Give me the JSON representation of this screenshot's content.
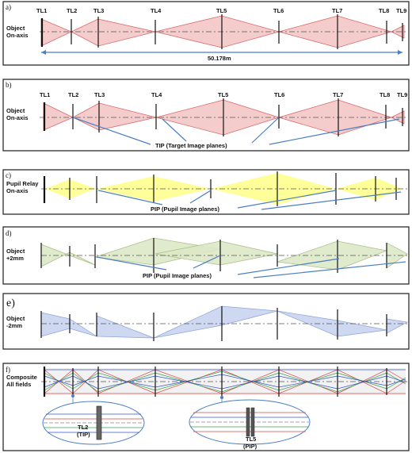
{
  "panels": {
    "a": {
      "letter": "a)",
      "side_label_line1": "Object",
      "side_label_line2": "On-axis",
      "lens_labels": [
        "TL1",
        "TL2",
        "TL3",
        "TL4",
        "TL5",
        "TL6",
        "TL7",
        "TL8",
        "TL9"
      ],
      "length_label": "50.178m"
    },
    "b": {
      "letter": "b)",
      "side_label_line1": "Object",
      "side_label_line2": "On-axis",
      "lens_labels": [
        "TL1",
        "TL2",
        "TL3",
        "TL4",
        "TL5",
        "TL6",
        "TL7",
        "TL8",
        "TL9"
      ],
      "note": "TIP (Target Image planes)"
    },
    "c": {
      "letter": "c)",
      "side_label_line1": "Pupil Relay",
      "side_label_line2": "On-axis",
      "note": "PIP (Pupil Image planes)"
    },
    "d": {
      "letter": "d)",
      "side_label_line1": "Object",
      "side_label_line2": "+2mm",
      "note": "PIP (Pupil Image planes)"
    },
    "e": {
      "letter": "e)",
      "side_label_line1": "Object",
      "side_label_line2": "-2mm"
    },
    "f": {
      "letter": "f)",
      "side_label_line1": "Composite",
      "side_label_line2": "All fields",
      "inset1_line1": "TL2",
      "inset1_line2": "(TIP)",
      "inset2_line1": "TL5",
      "inset2_line2": "(PIP)"
    }
  },
  "colors": {
    "red": "#d96b6b",
    "green": "#3aa04a",
    "blue": "#3355cc",
    "arrow": "#4a7ec4"
  }
}
